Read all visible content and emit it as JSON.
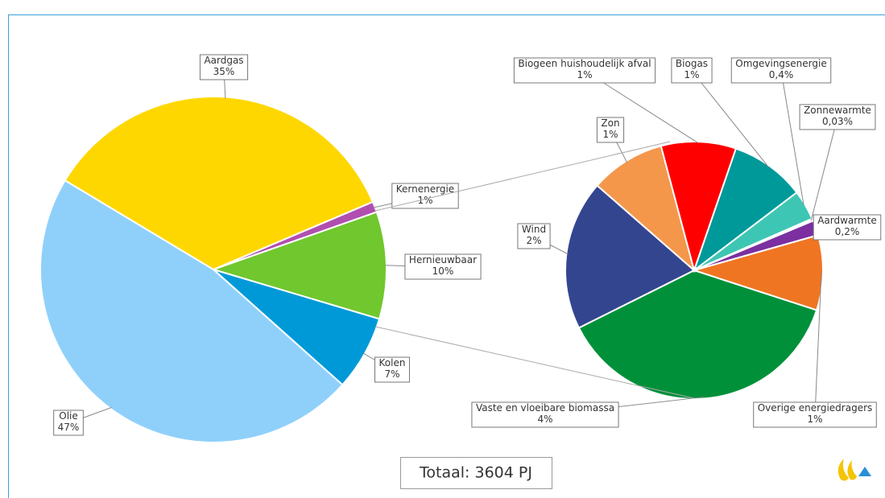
{
  "chart_data": [
    {
      "type": "pie",
      "categories": [
        "Aardgas",
        "Kernenergie",
        "Hernieuwbaar",
        "Kolen",
        "Olie"
      ],
      "values": [
        35,
        1,
        10,
        7,
        47
      ],
      "value_labels": [
        "35%",
        "1%",
        "10%",
        "7%",
        "47%"
      ],
      "colors": [
        "#ffd700",
        "#b04fb0",
        "#70c72e",
        "#0099d8",
        "#8fd0fb"
      ],
      "annotation": "Totaal: 3604 PJ"
    },
    {
      "type": "pie",
      "categories": [
        "Vaste en vloeibare biomassa",
        "Wind",
        "Zon",
        "Biogeen huishoudelijk afval",
        "Biogas",
        "Omgevingsenergie",
        "Zonnewarmte",
        "Aardwarmte",
        "Overige energiedragers"
      ],
      "values": [
        4,
        2,
        1,
        1,
        1,
        0.4,
        0.03,
        0.2,
        1
      ],
      "value_labels": [
        "4%",
        "2%",
        "1%",
        "1%",
        "1%",
        "0,4%",
        "0,03%",
        "0,2%",
        "1%"
      ],
      "colors": [
        "#00903a",
        "#344590",
        "#f4974a",
        "#ff0000",
        "#009999",
        "#3ec6b4",
        "#ffffff",
        "#7b2fa0",
        "#f07522"
      ]
    }
  ]
}
